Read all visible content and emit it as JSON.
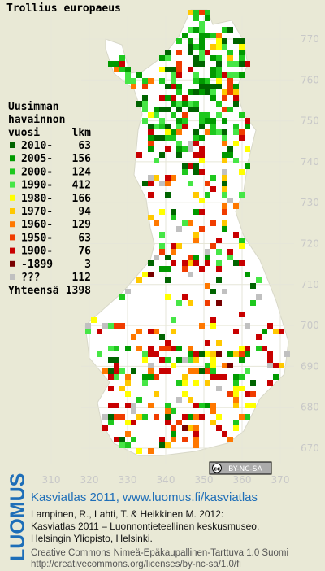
{
  "title": "Trollius europaeus",
  "legend": {
    "heading": [
      "Uusimman",
      "havainnon",
      "vuosi"
    ],
    "count_heading": "lkm",
    "items": [
      {
        "label": "2010-",
        "count": 63,
        "color": "#006400"
      },
      {
        "label": "2005-",
        "count": 156,
        "color": "#009a00"
      },
      {
        "label": "2000-",
        "count": 124,
        "color": "#1ec81e"
      },
      {
        "label": "1990-",
        "count": 412,
        "color": "#46e646"
      },
      {
        "label": "1980-",
        "count": 166,
        "color": "#ffff00"
      },
      {
        "label": "1970-",
        "count": 94,
        "color": "#ffc800"
      },
      {
        "label": "1960-",
        "count": 129,
        "color": "#ff7800"
      },
      {
        "label": "1950-",
        "count": 63,
        "color": "#f03c00"
      },
      {
        "label": "1900-",
        "count": 76,
        "color": "#c80000"
      },
      {
        "label": "-1899",
        "count": 3,
        "color": "#780000"
      },
      {
        "label": "???",
        "count": 112,
        "color": "#c0c0c0"
      }
    ],
    "total_label": "Yhteensä",
    "total": 1398
  },
  "map": {
    "y_labels": [
      770,
      760,
      750,
      740,
      730,
      720,
      710,
      700,
      690,
      680,
      670
    ],
    "x_labels": [
      310,
      320,
      330,
      340,
      350,
      360,
      370
    ]
  },
  "license_badge": {
    "icon": "cc",
    "text": "BY-NC-SA"
  },
  "footer": {
    "logo": "LUOMUS",
    "headline": "Kasviatlas 2011, www.luomus.fi/kasviatlas",
    "lines": [
      "Lampinen, R., Lahti, T. & Heikkinen M. 2012:",
      "Kasviatlas 2011 – Luonnontieteellinen keskusmuseo,",
      "Helsingin Yliopisto, Helsinki."
    ],
    "license_lines": [
      "Creative Commons Nimeä-Epäkaupallinen-Tarttuva 1.0 Suomi",
      "http://creativecommons.org/licenses/by-nc-sa/1.0/fi"
    ]
  }
}
